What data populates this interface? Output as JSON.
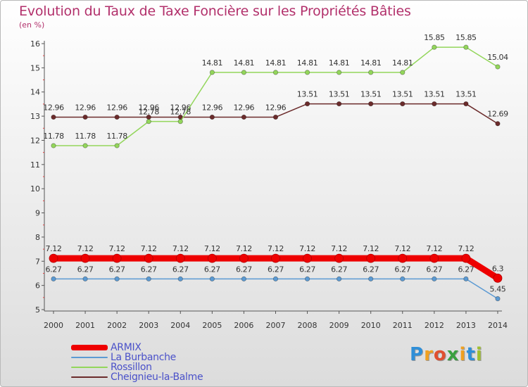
{
  "chart_data": {
    "type": "line",
    "title": "Evolution du Taux de Taxe Foncière sur les Propriétés Bâties",
    "subtitle": "(en %)",
    "x": [
      "2000",
      "2001",
      "2002",
      "2003",
      "2004",
      "2005",
      "2006",
      "2007",
      "2008",
      "2009",
      "2010",
      "2011",
      "2012",
      "2013",
      "2014"
    ],
    "ylim": [
      5,
      16
    ],
    "yticks": [
      "5",
      "6",
      "7",
      "8",
      "9",
      "10",
      "11",
      "12",
      "13",
      "14",
      "15",
      "16"
    ],
    "grid": false,
    "legend_position": "bottom-left",
    "series": [
      {
        "name": "Cheignieu-la-Balme",
        "color": "#6b2b2b",
        "values": [
          12.96,
          12.96,
          12.96,
          12.96,
          12.96,
          12.96,
          12.96,
          12.96,
          13.51,
          13.51,
          13.51,
          13.51,
          13.51,
          13.51,
          12.69
        ],
        "labels": [
          "12.96",
          "12.96",
          "12.96",
          "12.96",
          "12.96",
          "12.96",
          "12.96",
          "12.96",
          "13.51",
          "13.51",
          "13.51",
          "13.51",
          "13.51",
          "13.51",
          "12.69"
        ]
      },
      {
        "name": "Rossillon",
        "color": "#93d65b",
        "values": [
          11.78,
          11.78,
          11.78,
          12.78,
          12.78,
          14.81,
          14.81,
          14.81,
          14.81,
          14.81,
          14.81,
          14.81,
          15.85,
          15.85,
          15.04
        ],
        "labels": [
          "11.78",
          "11.78",
          "11.78",
          "12.78",
          "12.78",
          "14.81",
          "14.81",
          "14.81",
          "14.81",
          "14.81",
          "14.81",
          "14.81",
          "15.85",
          "15.85",
          "15.04"
        ]
      },
      {
        "name": "La Burbanche",
        "color": "#5b9ad3",
        "values": [
          6.27,
          6.27,
          6.27,
          6.27,
          6.27,
          6.27,
          6.27,
          6.27,
          6.27,
          6.27,
          6.27,
          6.27,
          6.27,
          6.27,
          5.45
        ],
        "labels": [
          "6.27",
          "6.27",
          "6.27",
          "6.27",
          "6.27",
          "6.27",
          "6.27",
          "6.27",
          "6.27",
          "6.27",
          "6.27",
          "6.27",
          "6.27",
          "6.27",
          "5.45"
        ]
      },
      {
        "name": "ARMIX",
        "color": "#ee0000",
        "values": [
          7.12,
          7.12,
          7.12,
          7.12,
          7.12,
          7.12,
          7.12,
          7.12,
          7.12,
          7.12,
          7.12,
          7.12,
          7.12,
          7.12,
          6.3
        ],
        "labels": [
          "7.12",
          "7.12",
          "7.12",
          "7.12",
          "7.12",
          "7.12",
          "7.12",
          "7.12",
          "7.12",
          "7.12",
          "7.12",
          "7.12",
          "7.12",
          "7.12",
          "6.3"
        ]
      }
    ],
    "legend": [
      {
        "name": "ARMIX",
        "color": "#ee0000"
      },
      {
        "name": "La Burbanche",
        "color": "#5b9ad3"
      },
      {
        "name": "Rossillon",
        "color": "#93d65b"
      },
      {
        "name": "Cheignieu-la-Balme",
        "color": "#6b2b2b"
      }
    ]
  },
  "logo": {
    "text": "Proxiti",
    "letters": [
      {
        "ch": "P",
        "color": "#2f8fd8"
      },
      {
        "ch": "r",
        "color": "#f0a020"
      },
      {
        "ch": "o",
        "color": "#e05030"
      },
      {
        "ch": "x",
        "color": "#3aa040"
      },
      {
        "ch": "i",
        "color": "#f0a020"
      },
      {
        "ch": "t",
        "color": "#2f8fd8"
      },
      {
        "ch": "i",
        "color": "#a0c030"
      }
    ]
  }
}
